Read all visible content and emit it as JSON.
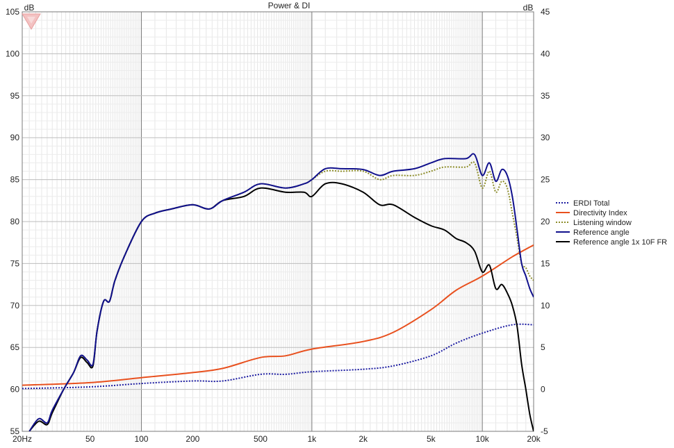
{
  "chart_data": {
    "type": "line",
    "title": "Power & DI",
    "ylabel_left": "dB",
    "ylabel_right": "dB",
    "x_scale": "log",
    "xlim": [
      20,
      20000
    ],
    "ylim_left": [
      55,
      105
    ],
    "ylim_right": [
      -5,
      45
    ],
    "x_tick_labels": [
      {
        "value": 20,
        "label": "20Hz"
      },
      {
        "value": 50,
        "label": "50"
      },
      {
        "value": 100,
        "label": "100"
      },
      {
        "value": 200,
        "label": "200"
      },
      {
        "value": 500,
        "label": "500"
      },
      {
        "value": 1000,
        "label": "1k"
      },
      {
        "value": 2000,
        "label": "2k"
      },
      {
        "value": 5000,
        "label": "5k"
      },
      {
        "value": 10000,
        "label": "10k"
      },
      {
        "value": 20000,
        "label": "20k"
      }
    ],
    "y_left_ticks": [
      55,
      60,
      65,
      70,
      75,
      80,
      85,
      90,
      95,
      100,
      105
    ],
    "y_right_ticks": [
      -5,
      0,
      5,
      10,
      15,
      20,
      25,
      30,
      35,
      40,
      45
    ],
    "grid": true,
    "legend_position": "right",
    "series": [
      {
        "name": "ERDI Total",
        "color": "#1a1aa0",
        "style": "dotted",
        "axis": "right",
        "x": [
          20,
          50,
          100,
          200,
          300,
          500,
          700,
          1000,
          2000,
          3000,
          5000,
          7000,
          10000,
          15000,
          20000
        ],
        "y": [
          0.1,
          0.3,
          0.7,
          1.0,
          1.0,
          1.8,
          1.8,
          2.1,
          2.4,
          2.8,
          4.0,
          5.5,
          6.7,
          7.7,
          7.7
        ]
      },
      {
        "name": "Directivity Index",
        "color": "#e8501e",
        "style": "solid",
        "axis": "right",
        "x": [
          20,
          50,
          100,
          200,
          300,
          500,
          700,
          1000,
          2000,
          3000,
          5000,
          7000,
          10000,
          15000,
          20000
        ],
        "y": [
          0.5,
          0.8,
          1.4,
          2.0,
          2.5,
          3.8,
          4.0,
          4.8,
          5.7,
          6.8,
          9.5,
          11.8,
          13.5,
          15.8,
          17.2
        ]
      },
      {
        "name": "Listening window",
        "color": "#8c8c28",
        "style": "dotted",
        "axis": "left",
        "x": [
          22,
          25,
          28,
          30,
          35,
          40,
          44,
          48,
          52,
          55,
          60,
          65,
          70,
          80,
          100,
          120,
          150,
          200,
          250,
          300,
          400,
          500,
          700,
          900,
          1000,
          1200,
          1500,
          2000,
          2500,
          3000,
          4000,
          5000,
          6000,
          8000,
          9000,
          10000,
          11000,
          12000,
          13000,
          14000,
          15000,
          16000,
          17000,
          18000,
          19000,
          20000
        ],
        "y": [
          55,
          56.5,
          56,
          57.5,
          60,
          62,
          64,
          63.5,
          63,
          67,
          70.5,
          70.5,
          73,
          76,
          80,
          81,
          81.5,
          82,
          81.5,
          82.5,
          83.5,
          84.5,
          84,
          84.5,
          85,
          86,
          86,
          86,
          85,
          85.5,
          85.5,
          86,
          86.5,
          86.5,
          87,
          84,
          86,
          83.5,
          84.8,
          84,
          81,
          78,
          75,
          74.5,
          73.5,
          73
        ]
      },
      {
        "name": "Reference angle",
        "color": "#10108c",
        "style": "solid",
        "axis": "left",
        "x": [
          22,
          25,
          28,
          30,
          35,
          40,
          44,
          48,
          52,
          55,
          60,
          65,
          70,
          80,
          100,
          120,
          150,
          200,
          250,
          300,
          400,
          500,
          700,
          900,
          1000,
          1200,
          1500,
          2000,
          2500,
          3000,
          4000,
          5000,
          6000,
          8000,
          9000,
          10000,
          11000,
          12000,
          13000,
          14000,
          15000,
          16000,
          17000,
          18000,
          19000,
          20000
        ],
        "y": [
          55,
          56.5,
          56,
          57.5,
          60,
          62,
          64,
          63.5,
          63,
          67,
          70.5,
          70.5,
          73,
          76,
          80,
          81,
          81.5,
          82,
          81.5,
          82.5,
          83.5,
          84.5,
          84,
          84.5,
          85,
          86.3,
          86.3,
          86.2,
          85.5,
          86,
          86.3,
          87,
          87.5,
          87.5,
          88,
          85.5,
          87,
          84.8,
          86.2,
          85.5,
          83,
          79,
          75,
          73.5,
          72,
          71
        ]
      },
      {
        "name": "Reference angle 1x 10F FR",
        "color": "#000000",
        "style": "solid",
        "axis": "left",
        "x": [
          22,
          25,
          28,
          30,
          35,
          40,
          44,
          48,
          52,
          55,
          60,
          65,
          70,
          80,
          100,
          120,
          150,
          200,
          250,
          300,
          400,
          500,
          700,
          900,
          1000,
          1200,
          1500,
          2000,
          2500,
          3000,
          4000,
          5000,
          6000,
          7000,
          8000,
          9000,
          10000,
          11000,
          12000,
          13000,
          14000,
          15000,
          16000,
          17000,
          18000,
          19000,
          20000
        ],
        "y": [
          55,
          56.2,
          55.8,
          57.2,
          60,
          62,
          63.8,
          63.2,
          62.8,
          67,
          70.5,
          70.5,
          73,
          76,
          80,
          81,
          81.5,
          82,
          81.5,
          82.5,
          83,
          84,
          83.5,
          83.5,
          83,
          84.5,
          84.5,
          83.5,
          82,
          82,
          80.5,
          79.5,
          79,
          78,
          77.5,
          76.5,
          74,
          74.8,
          72,
          72.5,
          71.5,
          70,
          67.5,
          63,
          60,
          57,
          55
        ]
      }
    ]
  }
}
